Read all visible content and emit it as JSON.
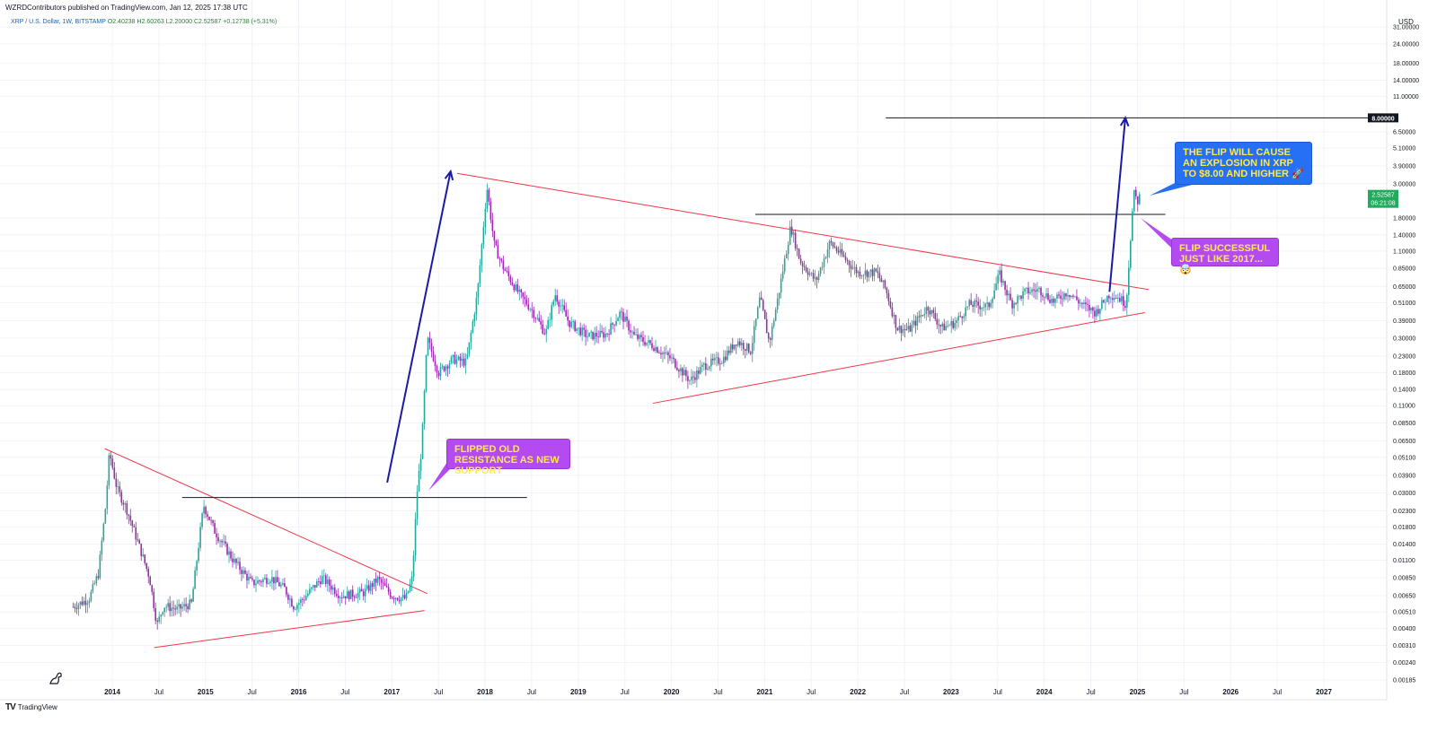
{
  "header": {
    "published": "WZRDContributors published on TradingView.com, Jan 12, 2025 17:38 UTC"
  },
  "symbol": {
    "name": "XRP / U.S. Dollar, 1W, BITSTAMP",
    "open": "O2.40238",
    "high": "H2.60263",
    "low": "L2.20000",
    "close": "C2.52587",
    "change": "+0.12738 (+5.31%)"
  },
  "footer": {
    "brand": "TradingView",
    "logo": "TV"
  },
  "colors": {
    "up": "#26a69a",
    "down": "#9c27b0",
    "trend": "#f23645",
    "arrow": "#1a1aa6",
    "price_tag": "#22ab5c"
  },
  "callouts": {
    "flip_2017": "FLIPPED OLD RESISTANCE AS NEW SUPPORT",
    "explosion": "THE FLIP WILL CAUSE AN EXPLOSION IN XRP TO $8.00 AND HIGHER 🚀",
    "flip_success": "FLIP SUCCESSFUL JUST LIKE 2017... 🤯"
  },
  "chart_data": {
    "type": "line",
    "title": "",
    "yscale": "log",
    "currency_label": "USD",
    "ylim": [
      0.00185,
      31
    ],
    "xlim": [
      2013.5,
      2027.8
    ],
    "y_ticks": [
      31.0,
      24.0,
      18.0,
      14.0,
      11.0,
      6.5,
      5.1,
      3.9,
      3.0,
      1.8,
      1.4,
      1.1,
      0.85,
      0.65,
      0.51,
      0.39,
      0.3,
      0.23,
      0.18,
      0.14,
      0.11,
      0.085,
      0.065,
      0.051,
      0.039,
      0.03,
      0.023,
      0.018,
      0.014,
      0.011,
      0.0085,
      0.0065,
      0.0051,
      0.004,
      0.0031,
      0.0024,
      0.00185
    ],
    "y_tick_labels": [
      "31.00000",
      "24.00000",
      "18.00000",
      "14.00000",
      "11.00000",
      "6.50000",
      "5.10000",
      "3.90000",
      "3.00000",
      "1.80000",
      "1.40000",
      "1.10000",
      "0.85000",
      "0.65000",
      "0.51000",
      "0.39000",
      "0.30000",
      "0.23000",
      "0.18000",
      "0.14000",
      "0.11000",
      "0.08500",
      "0.06500",
      "0.05100",
      "0.03900",
      "0.03000",
      "0.02300",
      "0.01800",
      "0.01400",
      "0.01100",
      "0.00850",
      "0.00650",
      "0.00510",
      "0.00400",
      "0.00310",
      "0.00240",
      "0.00185"
    ],
    "x_ticks": [
      {
        "t": 2014.0,
        "label": "2014",
        "year": true
      },
      {
        "t": 2014.5,
        "label": "Jul"
      },
      {
        "t": 2015.0,
        "label": "2015",
        "year": true
      },
      {
        "t": 2015.5,
        "label": "Jul"
      },
      {
        "t": 2016.0,
        "label": "2016",
        "year": true
      },
      {
        "t": 2016.5,
        "label": "Jul"
      },
      {
        "t": 2017.0,
        "label": "2017",
        "year": true
      },
      {
        "t": 2017.5,
        "label": "Jul"
      },
      {
        "t": 2018.0,
        "label": "2018",
        "year": true
      },
      {
        "t": 2018.5,
        "label": "Jul"
      },
      {
        "t": 2019.0,
        "label": "2019",
        "year": true
      },
      {
        "t": 2019.5,
        "label": "Jul"
      },
      {
        "t": 2020.0,
        "label": "2020",
        "year": true
      },
      {
        "t": 2020.5,
        "label": "Jul"
      },
      {
        "t": 2021.0,
        "label": "2021",
        "year": true
      },
      {
        "t": 2021.5,
        "label": "Jul"
      },
      {
        "t": 2022.0,
        "label": "2022",
        "year": true
      },
      {
        "t": 2022.5,
        "label": "Jul"
      },
      {
        "t": 2023.0,
        "label": "2023",
        "year": true
      },
      {
        "t": 2023.5,
        "label": "Jul"
      },
      {
        "t": 2024.0,
        "label": "2024",
        "year": true
      },
      {
        "t": 2024.5,
        "label": "Jul"
      },
      {
        "t": 2025.0,
        "label": "2025",
        "year": true
      },
      {
        "t": 2025.5,
        "label": "Jul"
      },
      {
        "t": 2026.0,
        "label": "2026",
        "year": true
      },
      {
        "t": 2026.5,
        "label": "Jul"
      },
      {
        "t": 2027.0,
        "label": "2027",
        "year": true
      }
    ],
    "price_path": [
      [
        2013.58,
        0.0055
      ],
      [
        2013.75,
        0.0062
      ],
      [
        2013.85,
        0.009
      ],
      [
        2013.93,
        0.025
      ],
      [
        2013.97,
        0.055
      ],
      [
        2014.05,
        0.032
      ],
      [
        2014.15,
        0.024
      ],
      [
        2014.3,
        0.013
      ],
      [
        2014.4,
        0.0085
      ],
      [
        2014.48,
        0.0042
      ],
      [
        2014.55,
        0.0056
      ],
      [
        2014.7,
        0.0053
      ],
      [
        2014.85,
        0.0058
      ],
      [
        2014.95,
        0.018
      ],
      [
        2014.98,
        0.025
      ],
      [
        2015.1,
        0.017
      ],
      [
        2015.3,
        0.011
      ],
      [
        2015.5,
        0.0078
      ],
      [
        2015.7,
        0.0085
      ],
      [
        2015.85,
        0.0072
      ],
      [
        2015.95,
        0.0055
      ],
      [
        2016.05,
        0.0062
      ],
      [
        2016.25,
        0.0085
      ],
      [
        2016.45,
        0.0065
      ],
      [
        2016.7,
        0.0068
      ],
      [
        2016.85,
        0.0083
      ],
      [
        2017.0,
        0.0065
      ],
      [
        2017.15,
        0.0062
      ],
      [
        2017.22,
        0.0085
      ],
      [
        2017.27,
        0.03
      ],
      [
        2017.32,
        0.06
      ],
      [
        2017.38,
        0.3
      ],
      [
        2017.5,
        0.18
      ],
      [
        2017.65,
        0.22
      ],
      [
        2017.8,
        0.21
      ],
      [
        2017.92,
        0.6
      ],
      [
        2018.02,
        2.85
      ],
      [
        2018.1,
        1.2
      ],
      [
        2018.2,
        0.85
      ],
      [
        2018.35,
        0.6
      ],
      [
        2018.5,
        0.46
      ],
      [
        2018.65,
        0.32
      ],
      [
        2018.75,
        0.58
      ],
      [
        2018.9,
        0.38
      ],
      [
        2019.1,
        0.31
      ],
      [
        2019.3,
        0.32
      ],
      [
        2019.45,
        0.44
      ],
      [
        2019.6,
        0.31
      ],
      [
        2019.8,
        0.27
      ],
      [
        2020.0,
        0.22
      ],
      [
        2020.2,
        0.16
      ],
      [
        2020.35,
        0.2
      ],
      [
        2020.55,
        0.22
      ],
      [
        2020.7,
        0.29
      ],
      [
        2020.85,
        0.25
      ],
      [
        2020.95,
        0.55
      ],
      [
        2021.05,
        0.28
      ],
      [
        2021.15,
        0.58
      ],
      [
        2021.28,
        1.6
      ],
      [
        2021.38,
        0.95
      ],
      [
        2021.55,
        0.7
      ],
      [
        2021.7,
        1.25
      ],
      [
        2021.85,
        1.0
      ],
      [
        2022.0,
        0.8
      ],
      [
        2022.2,
        0.8
      ],
      [
        2022.3,
        0.62
      ],
      [
        2022.42,
        0.35
      ],
      [
        2022.55,
        0.34
      ],
      [
        2022.75,
        0.48
      ],
      [
        2022.9,
        0.35
      ],
      [
        2023.05,
        0.38
      ],
      [
        2023.2,
        0.5
      ],
      [
        2023.4,
        0.48
      ],
      [
        2023.52,
        0.78
      ],
      [
        2023.65,
        0.5
      ],
      [
        2023.8,
        0.6
      ],
      [
        2023.95,
        0.62
      ],
      [
        2024.1,
        0.52
      ],
      [
        2024.25,
        0.6
      ],
      [
        2024.4,
        0.5
      ],
      [
        2024.55,
        0.44
      ],
      [
        2024.7,
        0.58
      ],
      [
        2024.8,
        0.55
      ],
      [
        2024.88,
        0.5
      ],
      [
        2024.92,
        1.2
      ],
      [
        2024.96,
        2.6
      ],
      [
        2025.0,
        2.3
      ],
      [
        2025.03,
        2.525
      ]
    ],
    "trendlines": [
      {
        "name": "2014-2017 upper",
        "from": [
          2013.92,
          0.058
        ],
        "to": [
          2017.38,
          0.0067
        ]
      },
      {
        "name": "2014-2017 lower",
        "from": [
          2014.45,
          0.003
        ],
        "to": [
          2017.35,
          0.0052
        ]
      },
      {
        "name": "2018-2024 upper",
        "from": [
          2017.7,
          3.5
        ],
        "to": [
          2025.12,
          0.62
        ]
      },
      {
        "name": "2018-2024 lower",
        "from": [
          2019.8,
          0.114
        ],
        "to": [
          2025.08,
          0.44
        ]
      }
    ],
    "horizontal_levels": [
      {
        "name": "2015 resistance",
        "value": 0.028,
        "from": 2014.75,
        "to": 2018.45
      },
      {
        "name": "2021 resistance",
        "value": 1.9,
        "from": 2020.9,
        "to": 2025.3
      },
      {
        "name": "target",
        "value": 8.0,
        "from": 2022.3,
        "to": 2027.8
      }
    ],
    "arrows": [
      {
        "from": [
          2016.95,
          0.035
        ],
        "to": [
          2017.63,
          3.6
        ]
      },
      {
        "from": [
          2024.7,
          0.6
        ],
        "to": [
          2024.87,
          8.0
        ]
      }
    ],
    "markers": [
      {
        "label": "8.00000",
        "value": 8.0,
        "style": "black"
      },
      {
        "label": "2.52587",
        "sub": "06:21:08",
        "value": 2.52587,
        "style": "green"
      }
    ]
  }
}
